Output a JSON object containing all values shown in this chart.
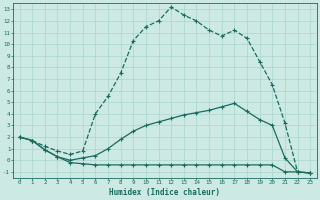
{
  "title": "",
  "xlabel": "Humidex (Indice chaleur)",
  "bg_color": "#cce9e4",
  "grid_color": "#aad4ce",
  "line_color": "#1a6b5e",
  "xlim": [
    -0.5,
    23.5
  ],
  "ylim": [
    -1.5,
    13.5
  ],
  "xticks": [
    0,
    1,
    2,
    3,
    4,
    5,
    6,
    7,
    8,
    9,
    10,
    11,
    12,
    13,
    14,
    15,
    16,
    17,
    18,
    19,
    20,
    21,
    22,
    23
  ],
  "yticks": [
    -1,
    0,
    1,
    2,
    3,
    4,
    5,
    6,
    7,
    8,
    9,
    10,
    11,
    12,
    13
  ],
  "line1_x": [
    0,
    1,
    2,
    3,
    4,
    5,
    6,
    7,
    8,
    9,
    10,
    11,
    12,
    13,
    14,
    15,
    16,
    17,
    18,
    19,
    20,
    21,
    22,
    23
  ],
  "line1_y": [
    2.0,
    1.7,
    1.2,
    0.8,
    0.5,
    0.8,
    4.0,
    5.5,
    7.5,
    10.3,
    11.5,
    12.0,
    13.2,
    12.5,
    12.0,
    11.2,
    10.7,
    11.2,
    10.5,
    8.5,
    6.5,
    3.2,
    -1.0,
    -1.1
  ],
  "line2_x": [
    0,
    1,
    2,
    3,
    4,
    5,
    6,
    7,
    8,
    9,
    10,
    11,
    12,
    13,
    14,
    15,
    16,
    17,
    18,
    19,
    20,
    21,
    22,
    23
  ],
  "line2_y": [
    2.0,
    1.7,
    0.9,
    0.3,
    0.0,
    0.2,
    0.4,
    1.0,
    1.8,
    2.5,
    3.0,
    3.3,
    3.6,
    3.9,
    4.1,
    4.3,
    4.6,
    4.9,
    4.2,
    3.5,
    3.0,
    0.2,
    -1.0,
    -1.1
  ],
  "line3_x": [
    0,
    1,
    2,
    3,
    4,
    5,
    6,
    7,
    8,
    9,
    10,
    11,
    12,
    13,
    14,
    15,
    16,
    17,
    18,
    19,
    20,
    21,
    22,
    23
  ],
  "line3_y": [
    2.0,
    1.7,
    0.9,
    0.3,
    -0.2,
    -0.3,
    -0.4,
    -0.4,
    -0.4,
    -0.4,
    -0.4,
    -0.4,
    -0.4,
    -0.4,
    -0.4,
    -0.4,
    -0.4,
    -0.4,
    -0.4,
    -0.4,
    -0.4,
    -1.0,
    -1.0,
    -1.1
  ],
  "line1_style": "-",
  "line2_style": "-",
  "line3_style": "-",
  "marker": "+",
  "markersize": 3,
  "linewidth": 0.9
}
